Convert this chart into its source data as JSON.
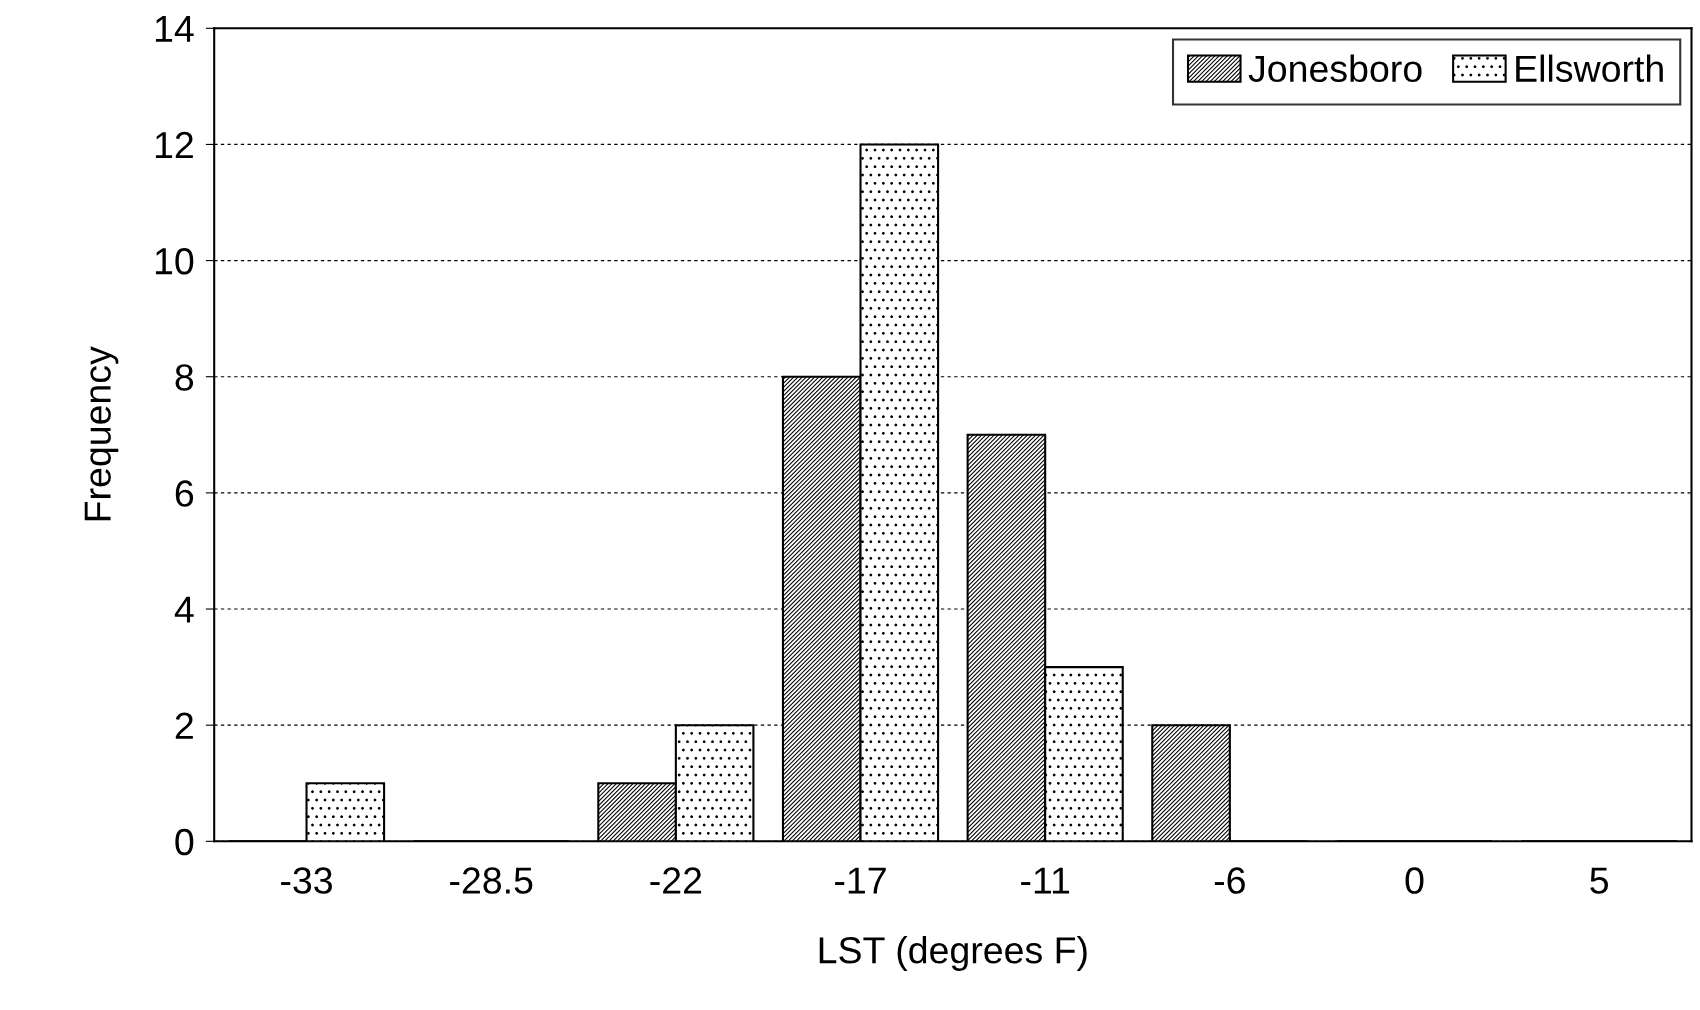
{
  "chart_data": {
    "type": "bar",
    "xlabel": "LST (degrees F)",
    "ylabel": "Frequency",
    "categories": [
      "-33",
      "-28.5",
      "-22",
      "-17",
      "-11",
      "-6",
      "0",
      "5"
    ],
    "series": [
      {
        "name": "Jonesboro",
        "color": "#000000",
        "values": [
          0,
          0,
          1,
          8,
          7,
          2,
          0,
          0
        ]
      },
      {
        "name": "Ellsworth",
        "color": "#000000",
        "values": [
          1,
          0,
          2,
          12,
          3,
          0,
          0,
          0
        ]
      }
    ],
    "ylim": [
      0,
      14
    ],
    "yticks": [
      0,
      2,
      4,
      6,
      8,
      10,
      12,
      14
    ],
    "grid": "y",
    "legend": "top right"
  }
}
